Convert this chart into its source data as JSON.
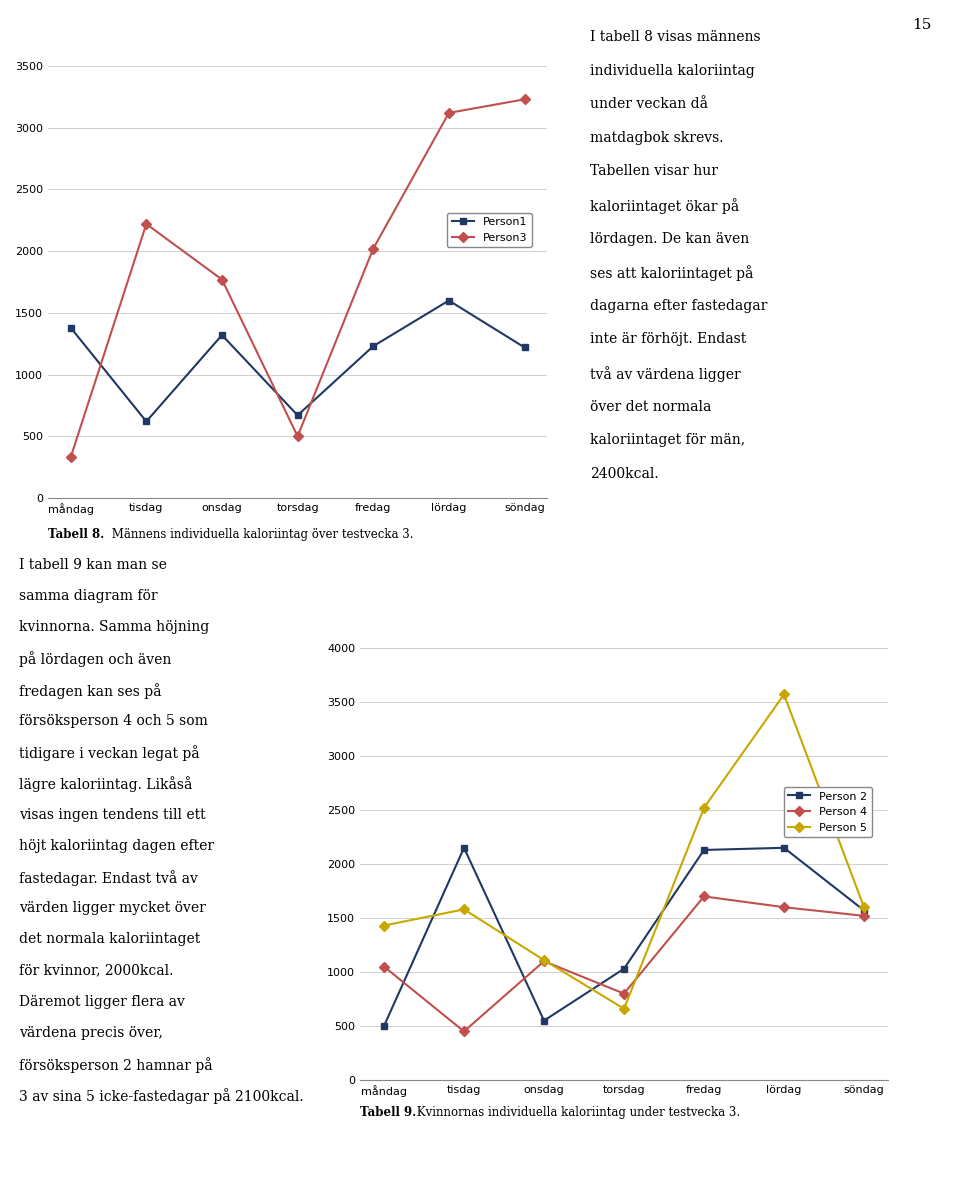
{
  "days": [
    "måndag",
    "tisdag",
    "onsdag",
    "torsdag",
    "fredag",
    "lördag",
    "söndag"
  ],
  "chart1": {
    "person1": [
      1380,
      620,
      1320,
      670,
      1230,
      1600,
      1220
    ],
    "person3": [
      330,
      2220,
      1770,
      500,
      2020,
      3120,
      3230
    ],
    "person1_color": "#1F3864",
    "person3_color": "#C0504D",
    "person1_label": "Person1",
    "person3_label": "Person3",
    "ylim": [
      0,
      3500
    ],
    "yticks": [
      0,
      500,
      1000,
      1500,
      2000,
      2500,
      3000,
      3500
    ],
    "caption_bold": "Tabell 8.",
    "caption_text": " Männens individuella kaloriintag över testvecka 3."
  },
  "chart1_side_text": [
    "I tabell 8 visas männens",
    "individuella kaloriintag",
    "under veckan då",
    "matdagbok skrevs.",
    "Tabellen visar hur",
    "kaloriintaget ökar på",
    "lördagen. De kan även",
    "ses att kaloriintaget på",
    "dagarna efter fastedagar",
    "inte är förhöjt. Endast",
    "två av värdena ligger",
    "över det normala",
    "kaloriintaget för män,",
    "2400kcal."
  ],
  "chart2": {
    "person2": [
      500,
      2150,
      550,
      1030,
      2130,
      2150,
      1570
    ],
    "person4": [
      1050,
      450,
      1100,
      800,
      1700,
      1600,
      1520
    ],
    "person5": [
      1430,
      1580,
      1110,
      660,
      2520,
      3570,
      1600
    ],
    "person2_color": "#1F3864",
    "person4_color": "#C0504D",
    "person5_color": "#C8A800",
    "person2_label": "Person 2",
    "person4_label": "Person 4",
    "person5_label": "Person 5",
    "ylim": [
      0,
      4000
    ],
    "yticks": [
      0,
      500,
      1000,
      1500,
      2000,
      2500,
      3000,
      3500,
      4000
    ],
    "caption_bold": "Tabell 9.",
    "caption_text": " Kvinnornas individuella kaloriintag under testvecka 3."
  },
  "chart2_left_text": [
    "I tabell 9 kan man se",
    "samma diagram för",
    "kvinnorna. Samma höjning",
    "på lördagen och även",
    "fredagen kan ses på",
    "försöksperson 4 och 5 som",
    "tidigare i veckan legat på",
    "lägre kaloriintag. Likåså",
    "visas ingen tendens till ett",
    "höjt kaloriintag dagen efter",
    "fastedagar. Endast två av",
    "värden ligger mycket över",
    "det normala kaloriintaget",
    "för kvinnor, 2000kcal.",
    "Däremot ligger flera av",
    "värdena precis över,",
    "försöksperson 2 hamnar på",
    "3 av sina 5 icke-fastedagar på 2100kcal."
  ],
  "page_number": "15",
  "background_color": "#FFFFFF",
  "grid_color": "#D0D0D0",
  "axis_color": "#000000"
}
